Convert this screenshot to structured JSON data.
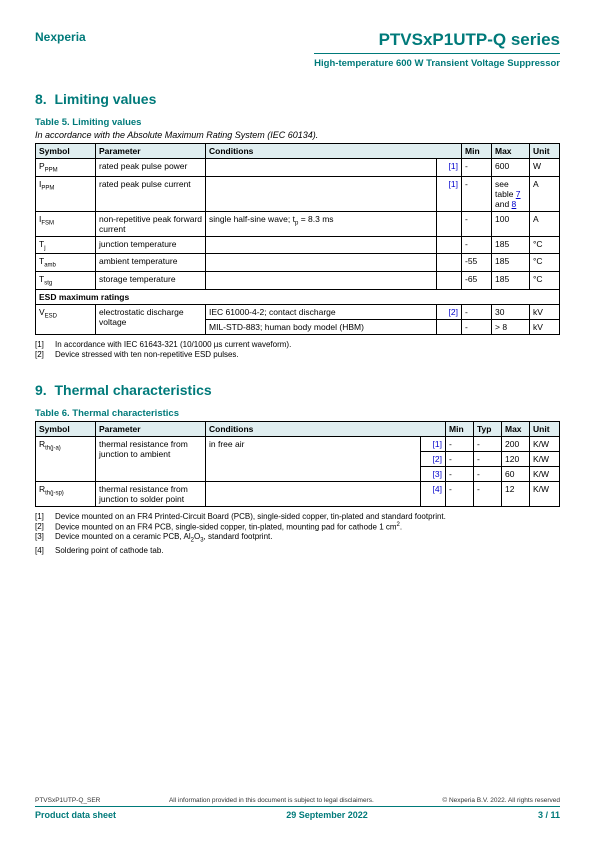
{
  "header": {
    "brand": "Nexperia",
    "series": "PTVSxP1UTP-Q series",
    "subtitle": "High-temperature 600 W Transient Voltage Suppressor"
  },
  "section8": {
    "num": "8.",
    "title": "Limiting values",
    "caption": "Table 5. Limiting values",
    "compliance": "In accordance with the Absolute Maximum Rating System (IEC 60134).",
    "cols": {
      "symbol": "Symbol",
      "parameter": "Parameter",
      "conditions": "Conditions",
      "min": "Min",
      "max": "Max",
      "unit": "Unit"
    },
    "rows": [
      {
        "sym_base": "P",
        "sym_sub": "PPM",
        "param": "rated peak pulse power",
        "cond": "",
        "ref": "[1]",
        "min": "-",
        "max": "600",
        "unit": "W"
      },
      {
        "sym_base": "I",
        "sym_sub": "PPM",
        "param": "rated peak pulse current",
        "cond": "",
        "ref": "[1]",
        "min": "-",
        "max_html": "see table <a class='link'>7</a> and <a class='link'>8</a>",
        "unit": "A"
      },
      {
        "sym_base": "I",
        "sym_sub": "FSM",
        "param": "non-repetitive peak forward current",
        "cond_html": "single half-sine wave; t<span class='sub'>p</span> = 8.3 ms",
        "ref": "",
        "min": "-",
        "max": "100",
        "unit": "A"
      },
      {
        "sym_base": "T",
        "sym_sub": "j",
        "param": "junction temperature",
        "cond": "",
        "ref": "",
        "min": "-",
        "max": "185",
        "unit": "°C"
      },
      {
        "sym_base": "T",
        "sym_sub": "amb",
        "param": "ambient temperature",
        "cond": "",
        "ref": "",
        "min": "-55",
        "max": "185",
        "unit": "°C"
      },
      {
        "sym_base": "T",
        "sym_sub": "stg",
        "param": "storage temperature",
        "cond": "",
        "ref": "",
        "min": "-65",
        "max": "185",
        "unit": "°C"
      }
    ],
    "esd_header": "ESD maximum ratings",
    "esd": {
      "sym_base": "V",
      "sym_sub": "ESD",
      "param": "electrostatic discharge voltage",
      "r1_cond": "IEC 61000-4-2; contact discharge",
      "r1_ref": "[2]",
      "r1_min": "-",
      "r1_max": "30",
      "r1_unit": "kV",
      "r2_cond": "MIL-STD-883; human body model (HBM)",
      "r2_ref": "",
      "r2_min": "-",
      "r2_max": "> 8",
      "r2_unit": "kV"
    },
    "notes": [
      {
        "idx": "[1]",
        "text": "In accordance with IEC 61643-321 (10/1000 µs current waveform)."
      },
      {
        "idx": "[2]",
        "text": "Device stressed with ten non-repetitive ESD pulses."
      }
    ]
  },
  "section9": {
    "num": "9.",
    "title": "Thermal characteristics",
    "caption": "Table 6. Thermal characteristics",
    "cols": {
      "symbol": "Symbol",
      "parameter": "Parameter",
      "conditions": "Conditions",
      "min": "Min",
      "typ": "Typ",
      "max": "Max",
      "unit": "Unit"
    },
    "rows": {
      "r1": {
        "sym_base": "R",
        "sym_sub": "th(j-a)",
        "param": "thermal resistance from junction to ambient",
        "cond": "in free air",
        "ref": "[1]",
        "min": "-",
        "typ": "-",
        "max": "200",
        "unit": "K/W"
      },
      "r2": {
        "ref": "[2]",
        "min": "-",
        "typ": "-",
        "max": "120",
        "unit": "K/W"
      },
      "r3": {
        "ref": "[3]",
        "min": "-",
        "typ": "-",
        "max": "60",
        "unit": "K/W"
      },
      "r4": {
        "sym_base": "R",
        "sym_sub": "th(j-sp)",
        "param": "thermal resistance from junction to solder point",
        "cond": "",
        "ref": "[4]",
        "min": "-",
        "typ": "-",
        "max": "12",
        "unit": "K/W"
      }
    },
    "notes": [
      {
        "idx": "[1]",
        "text": "Device mounted on an FR4 Printed-Circuit Board (PCB), single-sided copper, tin-plated and standard footprint."
      },
      {
        "idx": "[2]",
        "text_html": "Device mounted on an FR4 PCB, single-sided copper, tin-plated, mounting pad for cathode 1 cm<sup style='font-size:6px'>2</sup>."
      },
      {
        "idx": "[3]",
        "text_html": "Device mounted on a ceramic PCB, Al<span class='sub'>2</span>O<span class='sub'>3</span>, standard footprint."
      },
      {
        "idx": "[4]",
        "text": "Soldering point of cathode tab."
      }
    ]
  },
  "footer": {
    "doc_id": "PTVSxP1UTP-Q_SER",
    "disclaimer": "All information provided in this document is subject to legal disclaimers.",
    "copyright": "© Nexperia B.V. 2022. All rights reserved",
    "type": "Product data sheet",
    "date": "29 September 2022",
    "page": "3 / 11"
  }
}
